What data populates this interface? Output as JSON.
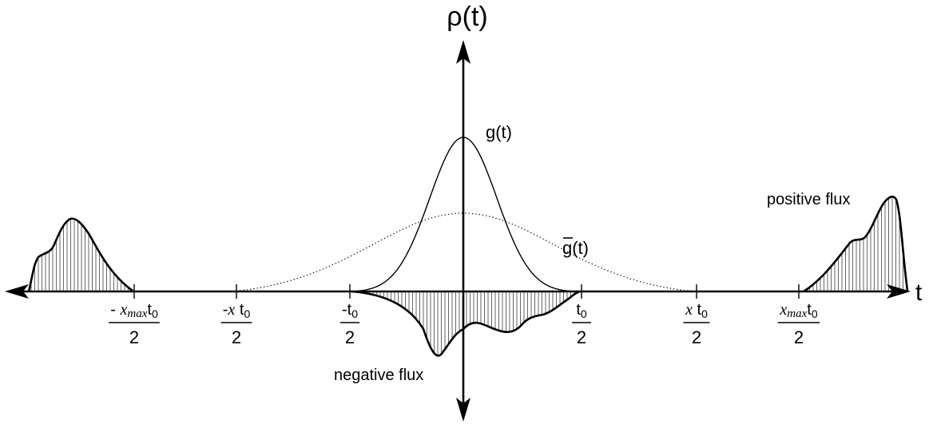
{
  "axes": {
    "y_label": "ρ(t)",
    "x_label": "t"
  },
  "curves": {
    "g_label": "g(t)",
    "gbar_label": "g(t)",
    "positive_label": "positive flux",
    "negative_label": "negative flux"
  },
  "ticks": [
    {
      "id": "neg-xmax",
      "num_pre": "- ",
      "num_var": "x",
      "num_sub_it": "max",
      "num_t": "t",
      "num_sub": "0",
      "den": "2"
    },
    {
      "id": "neg-x",
      "num_pre": "-",
      "num_var": "x",
      "num_sub_it": "",
      "num_t": " t",
      "num_sub": "0",
      "den": "2"
    },
    {
      "id": "neg-t0",
      "num_pre": "-",
      "num_var": "",
      "num_sub_it": "",
      "num_t": "t",
      "num_sub": "0",
      "den": "2"
    },
    {
      "id": "pos-t0",
      "num_pre": "",
      "num_var": "",
      "num_sub_it": "",
      "num_t": "t",
      "num_sub": "0",
      "den": "2"
    },
    {
      "id": "pos-x",
      "num_pre": "",
      "num_var": "x",
      "num_sub_it": "",
      "num_t": " t",
      "num_sub": "0",
      "den": "2"
    },
    {
      "id": "pos-xmax",
      "num_pre": "",
      "num_var": "x",
      "num_sub_it": "max",
      "num_t": "t",
      "num_sub": "0",
      "den": "2"
    }
  ]
}
